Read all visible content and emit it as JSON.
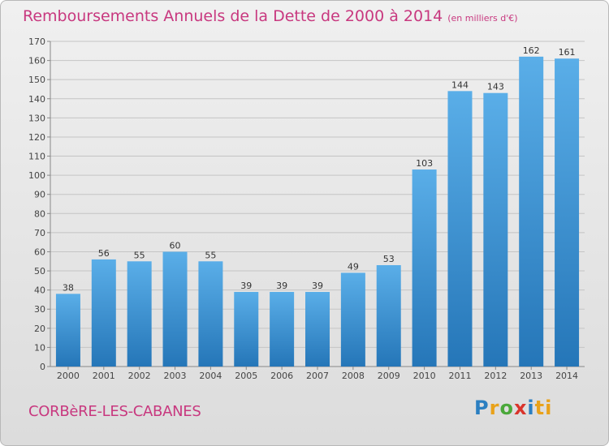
{
  "title": "Remboursements Annuels de la Dette de 2000 à 2014",
  "unit": "(en milliers d'€)",
  "commune": "CORBèRE-LES-CABANES",
  "logo": {
    "letters": [
      "P",
      "r",
      "o",
      "x",
      "i",
      "ti"
    ]
  },
  "colors": {
    "bar_top": "#5aaee8",
    "bar_bottom": "#2576b8",
    "title": "#c8387f"
  },
  "chart_data": {
    "type": "bar",
    "categories": [
      "2000",
      "2001",
      "2002",
      "2003",
      "2004",
      "2005",
      "2006",
      "2007",
      "2008",
      "2009",
      "2010",
      "2011",
      "2012",
      "2013",
      "2014"
    ],
    "values": [
      38,
      56,
      55,
      60,
      55,
      39,
      39,
      39,
      49,
      53,
      103,
      144,
      143,
      162,
      161
    ],
    "ylim": [
      0,
      170
    ],
    "yticks": [
      0,
      10,
      20,
      30,
      40,
      50,
      60,
      70,
      80,
      90,
      100,
      110,
      120,
      130,
      140,
      150,
      160,
      170
    ],
    "grid": true
  }
}
